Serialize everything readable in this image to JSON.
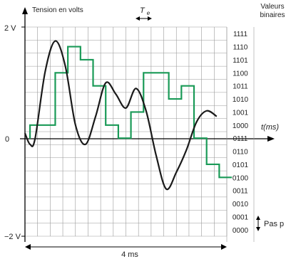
{
  "labels": {
    "y_axis_title": "Tension en volts",
    "right_title_1": "Valeurs",
    "right_title_2": "binaires",
    "y_top": "2 V",
    "y_bottom": "−2 V",
    "y_zero": "0",
    "x_axis_label": "t(ms)",
    "period_label": "4 ms",
    "te_label": "T",
    "te_sub": "e",
    "step_label": "Pas p"
  },
  "binary_values": [
    "0000",
    "0001",
    "0010",
    "0011",
    "0100",
    "0101",
    "0110",
    "0111",
    "1000",
    "1001",
    "1010",
    "1011",
    "1100",
    "1101",
    "1110",
    "1111"
  ],
  "colors": {
    "analog_curve": "#1a1a1a",
    "sampled_signal": "#1a9a57",
    "grid": "#9a9a9a",
    "axis": "#000000"
  },
  "chart_data": {
    "type": "line",
    "x_range_ms": [
      0,
      4
    ],
    "y_range_V": [
      -2,
      2
    ],
    "sample_period_ms": 0.2,
    "series": [
      {
        "kind": "analog",
        "x": [
          0,
          0.1,
          0.2,
          0.4,
          0.6,
          0.8,
          1.0,
          1.2,
          1.4,
          1.6,
          1.8,
          2.0,
          2.2,
          2.4,
          2.6,
          2.8,
          3.0,
          3.2,
          3.4,
          3.6,
          3.8
        ],
        "y": [
          0.1,
          -0.1,
          0.0,
          1.2,
          1.75,
          1.3,
          0.25,
          -0.1,
          0.4,
          1.0,
          0.8,
          0.55,
          0.9,
          0.5,
          -0.3,
          -0.9,
          -0.6,
          -0.2,
          0.3,
          0.5,
          0.4
        ]
      },
      {
        "kind": "sampled",
        "start": 0.1,
        "step": 0.25,
        "codes": [
          8,
          8,
          12,
          14,
          13,
          11,
          8,
          7,
          9,
          12,
          12,
          10,
          11,
          7,
          5,
          4
        ]
      }
    ]
  }
}
